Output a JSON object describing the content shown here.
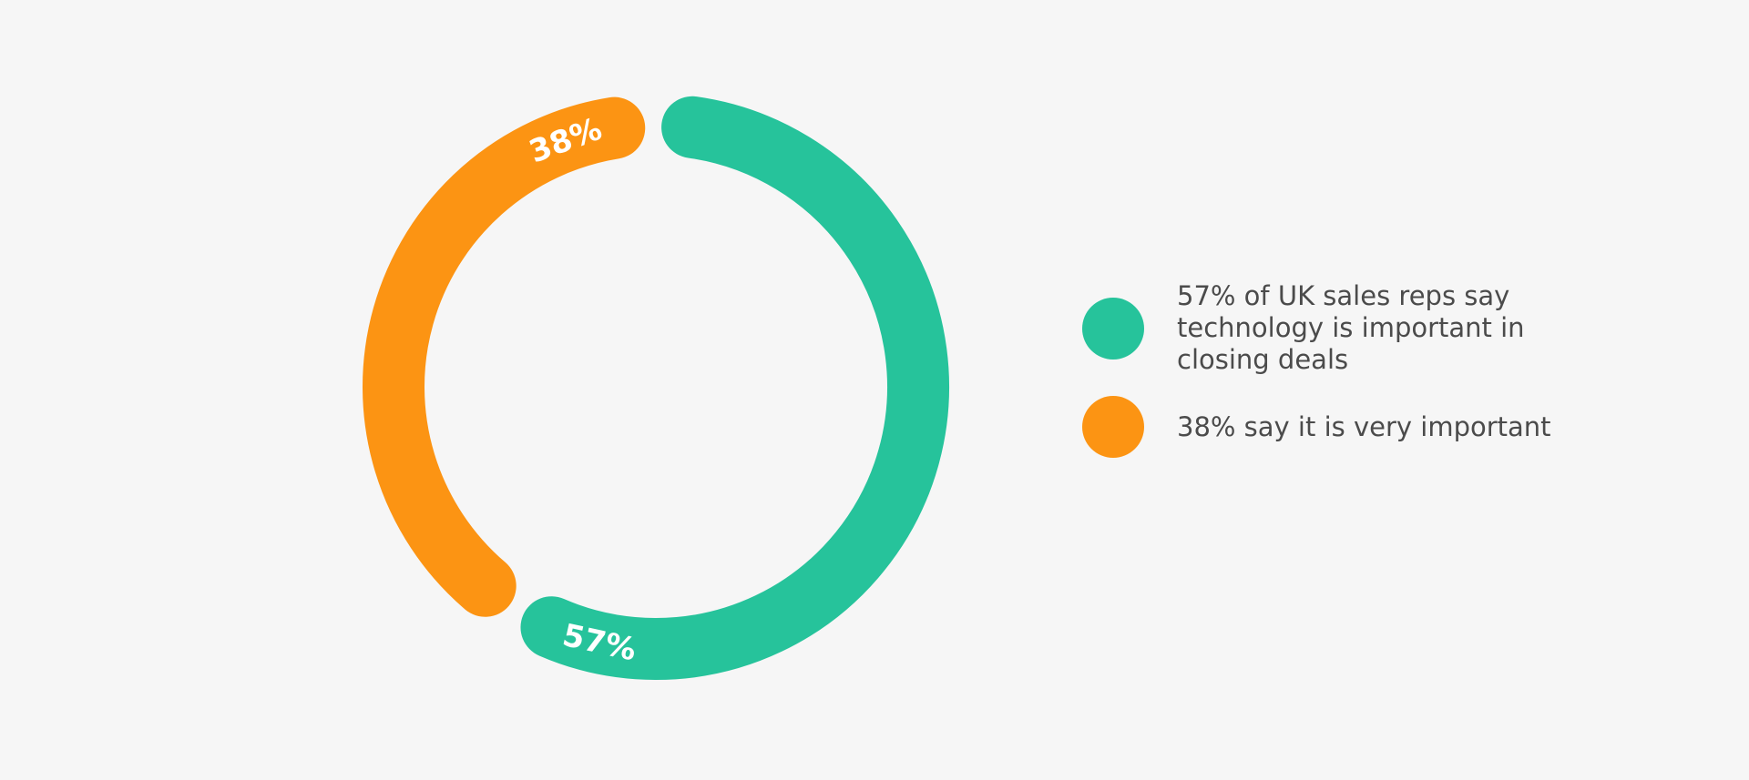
{
  "chart_data": {
    "type": "pie",
    "variant": "donut",
    "gap_share": 5,
    "series": [
      {
        "label": "57%",
        "value": 57,
        "color": "#26c39b",
        "legend": "57% of UK sales reps say technology is important in closing deals"
      },
      {
        "label": "38%",
        "value": 38,
        "color": "#fc9413",
        "legend": "38% say it is very important"
      }
    ],
    "legend_position": "right"
  }
}
